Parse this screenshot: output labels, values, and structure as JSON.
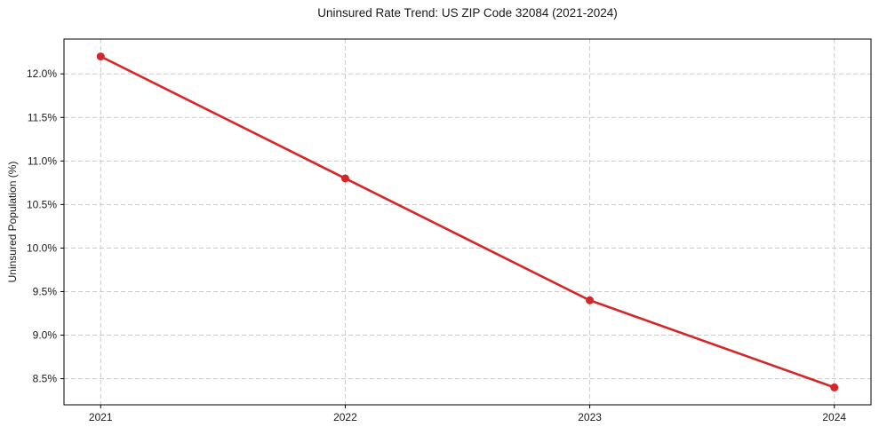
{
  "chart_data": {
    "type": "line",
    "title": "Uninsured Rate Trend: US ZIP Code 32084 (2021-2024)",
    "xlabel": "",
    "ylabel": "Uninsured Population (%)",
    "x": [
      2021,
      2022,
      2023,
      2024
    ],
    "x_tick_labels": [
      "2021",
      "2022",
      "2023",
      "2024"
    ],
    "values": [
      12.2,
      10.8,
      9.4,
      8.4
    ],
    "y_ticks": [
      8.5,
      9.0,
      9.5,
      10.0,
      10.5,
      11.0,
      11.5,
      12.0
    ],
    "y_tick_labels": [
      "8.5%",
      "9.0%",
      "9.5%",
      "10.0%",
      "10.5%",
      "11.0%",
      "11.5%",
      "12.0%"
    ],
    "xlim": [
      2020.85,
      2024.15
    ],
    "ylim": [
      8.2,
      12.4
    ],
    "grid": true,
    "grid_style": "dashed",
    "legend": false,
    "line_color": "#d62728",
    "grid_color": "#c9c9c9",
    "axis_color": "#000000",
    "marker": "circle"
  }
}
